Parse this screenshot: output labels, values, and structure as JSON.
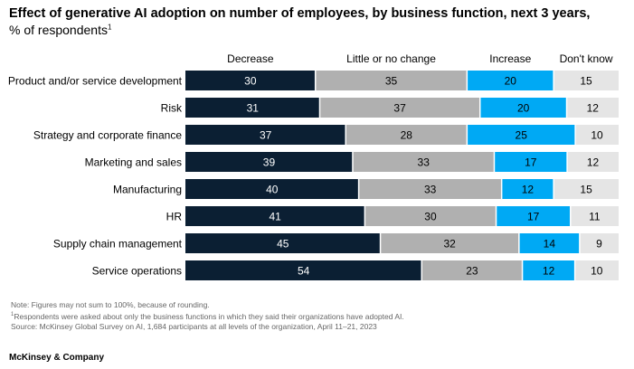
{
  "title": "Effect of generative AI adoption on number of employees, by business function, next 3 years,",
  "subtitle": "% of respondents",
  "subtitle_footnote": "1",
  "chart_data": {
    "type": "bar",
    "orientation": "horizontal",
    "stacked": true,
    "title": "Effect of generative AI adoption on number of employees, by business function, next 3 years,",
    "categories": [
      "Product and/or service development",
      "Risk",
      "Strategy and corporate finance",
      "Marketing and sales",
      "Manufacturing",
      "HR",
      "Supply chain management",
      "Service operations"
    ],
    "series": [
      {
        "name": "Decrease",
        "color": "#0b1f33",
        "label_color": "#ffffff",
        "values": [
          30,
          31,
          37,
          39,
          40,
          41,
          45,
          54
        ]
      },
      {
        "name": "Little or no change",
        "color": "#b0b0b0",
        "label_color": "#000000",
        "values": [
          35,
          37,
          28,
          33,
          33,
          30,
          32,
          23
        ]
      },
      {
        "name": "Increase",
        "color": "#00a9f4",
        "label_color": "#000000",
        "values": [
          20,
          20,
          25,
          17,
          12,
          17,
          14,
          12
        ]
      },
      {
        "name": "Don't know",
        "color": "#e5e5e5",
        "label_color": "#000000",
        "values": [
          15,
          12,
          10,
          12,
          15,
          11,
          9,
          10
        ]
      }
    ],
    "legend_position": "top",
    "grid": false
  },
  "notes": {
    "line1": "Note: Figures may not sum to 100%, because of rounding.",
    "line2_marker": "1",
    "line2": "Respondents were asked about only the business functions in which they said their organizations have adopted AI.",
    "line3": "Source: McKinsey Global Survey on AI, 1,684 participants at all levels of the organization, April 11–21, 2023"
  },
  "brand": "McKinsey & Company"
}
